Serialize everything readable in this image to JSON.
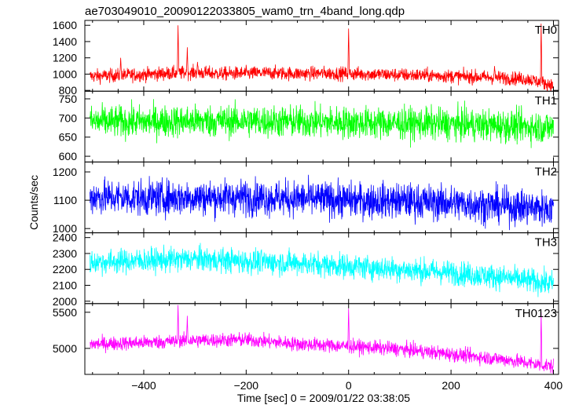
{
  "chart_data": {
    "type": "line",
    "title": "ae703049010_20090122033805_wam0_trn_4band_long.qdp",
    "xlabel": "Time [sec] 0 = 2009/01/22 03:38:05",
    "ylabel": "Counts/sec",
    "xlim": [
      -515,
      410
    ],
    "xticks": [
      -400,
      -200,
      0,
      200,
      400
    ],
    "grid": false,
    "panels": [
      {
        "name": "TH0",
        "color": "#ff0000",
        "ylim": [
          790,
          1660
        ],
        "yticks": [
          800,
          1000,
          1200,
          1400,
          1600
        ],
        "x": [
          -500,
          -450,
          -400,
          -350,
          -300,
          -250,
          -200,
          -150,
          -100,
          -50,
          0,
          50,
          100,
          150,
          200,
          250,
          300,
          350,
          400
        ],
        "y": [
          975,
          985,
          995,
          1010,
          1020,
          1005,
          1010,
          1015,
          1005,
          1010,
          1005,
          1000,
          990,
          985,
          975,
          965,
          955,
          940,
          860
        ],
        "noise": 60,
        "spikes": [
          {
            "x": -445,
            "y": 1200
          },
          {
            "x": -333,
            "y": 1600
          },
          {
            "x": -315,
            "y": 1330
          },
          {
            "x": -295,
            "y": 1150
          },
          {
            "x": 0,
            "y": 1560
          },
          {
            "x": 285,
            "y": 1100
          },
          {
            "x": 376,
            "y": 1620
          }
        ]
      },
      {
        "name": "TH1",
        "color": "#00ff00",
        "ylim": [
          585,
          770
        ],
        "yticks": [
          600,
          650,
          700,
          750
        ],
        "x": [
          -500,
          -400,
          -300,
          -200,
          -100,
          0,
          100,
          200,
          300,
          400
        ],
        "y": [
          690,
          690,
          692,
          692,
          690,
          688,
          686,
          684,
          680,
          675
        ],
        "noise": 30,
        "spikes": []
      },
      {
        "name": "TH2",
        "color": "#0000ff",
        "ylim": [
          985,
          1235
        ],
        "yticks": [
          1000,
          1100,
          1200
        ],
        "x": [
          -500,
          -400,
          -300,
          -200,
          -100,
          0,
          100,
          200,
          300,
          400
        ],
        "y": [
          1112,
          1108,
          1110,
          1110,
          1106,
          1100,
          1098,
          1090,
          1080,
          1070
        ],
        "noise": 45,
        "spikes": []
      },
      {
        "name": "TH3",
        "color": "#00ffff",
        "ylim": [
          1985,
          2430
        ],
        "yticks": [
          2000,
          2100,
          2200,
          2300,
          2400
        ],
        "x": [
          -500,
          -400,
          -300,
          -200,
          -100,
          0,
          100,
          200,
          300,
          400
        ],
        "y": [
          2245,
          2255,
          2265,
          2250,
          2240,
          2220,
          2200,
          2180,
          2150,
          2110
        ],
        "noise": 55,
        "spikes": []
      },
      {
        "name": "TH0123",
        "color": "#ff00ff",
        "ylim": [
          4640,
          5620
        ],
        "yticks": [
          5000,
          5500
        ],
        "x": [
          -500,
          -400,
          -300,
          -200,
          -100,
          0,
          100,
          200,
          300,
          400
        ],
        "y": [
          5060,
          5080,
          5110,
          5120,
          5060,
          5030,
          4990,
          4920,
          4850,
          4750
        ],
        "noise": 70,
        "spikes": [
          {
            "x": -333,
            "y": 5600
          },
          {
            "x": -315,
            "y": 5450
          },
          {
            "x": 0,
            "y": 5550
          },
          {
            "x": 376,
            "y": 5500
          }
        ]
      }
    ]
  }
}
